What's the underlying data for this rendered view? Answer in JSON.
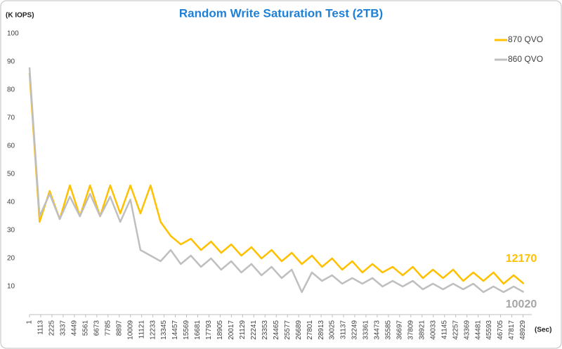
{
  "chart_data": {
    "type": "line",
    "title": "Random Write Saturation Test (2TB)",
    "y_label": "(K IOPS)",
    "x_label": "(Sec)",
    "x": [
      1,
      1000,
      2000,
      3000,
      4000,
      5000,
      6000,
      7000,
      8000,
      9000,
      10000,
      11000,
      12000,
      13000,
      14000,
      15000,
      16000,
      17000,
      18000,
      19000,
      20000,
      21000,
      22000,
      23000,
      24000,
      25000,
      26000,
      27000,
      28000,
      29000,
      30000,
      31000,
      32000,
      33000,
      34000,
      35000,
      36000,
      37000,
      38000,
      39000,
      40000,
      41000,
      42000,
      43000,
      44000,
      45000,
      46000,
      47000,
      48000,
      49000
    ],
    "series": [
      {
        "name": "870 QVO",
        "color": "#ffc000",
        "values": [
          86,
          33,
          44,
          34,
          46,
          35,
          46,
          35,
          46,
          36,
          46,
          36,
          46,
          33,
          28,
          25,
          27,
          23,
          26,
          22,
          25,
          21,
          24,
          20,
          23,
          19,
          22,
          18,
          21,
          17,
          20,
          16,
          19,
          15,
          18,
          15,
          17,
          14,
          17,
          13,
          16,
          13,
          16,
          12,
          15,
          12,
          15,
          11,
          14,
          11
        ]
      },
      {
        "name": "860 QVO",
        "color": "#bfbfbf",
        "values": [
          88,
          35,
          43,
          34,
          42,
          35,
          43,
          35,
          42,
          33,
          41,
          23,
          21,
          19,
          23,
          18,
          21,
          17,
          20,
          16,
          19,
          15,
          18,
          14,
          17,
          13,
          16,
          8,
          15,
          12,
          14,
          11,
          13,
          11,
          13,
          10,
          12,
          10,
          12,
          9,
          11,
          9,
          11,
          9,
          11,
          8,
          10,
          8,
          10,
          8
        ]
      }
    ],
    "annotations": [
      {
        "text": "12170",
        "color": "#ffc000"
      },
      {
        "text": "10020",
        "color": "#a6a6a6"
      }
    ],
    "xlim": [
      1,
      49800
    ],
    "ylim": [
      0,
      100
    ],
    "xticks": [
      1,
      1113,
      2225,
      3337,
      4449,
      5561,
      6673,
      7785,
      8897,
      10009,
      11121,
      12233,
      13345,
      14457,
      15569,
      16681,
      17793,
      18905,
      20017,
      21129,
      22241,
      23353,
      24465,
      25577,
      26689,
      27801,
      28913,
      30025,
      31137,
      32249,
      33361,
      34473,
      35585,
      36697,
      37809,
      38921,
      40033,
      41145,
      42257,
      43369,
      44481,
      45593,
      46705,
      47817,
      48929
    ],
    "yticks": [
      10,
      20,
      30,
      40,
      50,
      60,
      70,
      80,
      90,
      100
    ],
    "grid": false,
    "legend": "top-right"
  }
}
